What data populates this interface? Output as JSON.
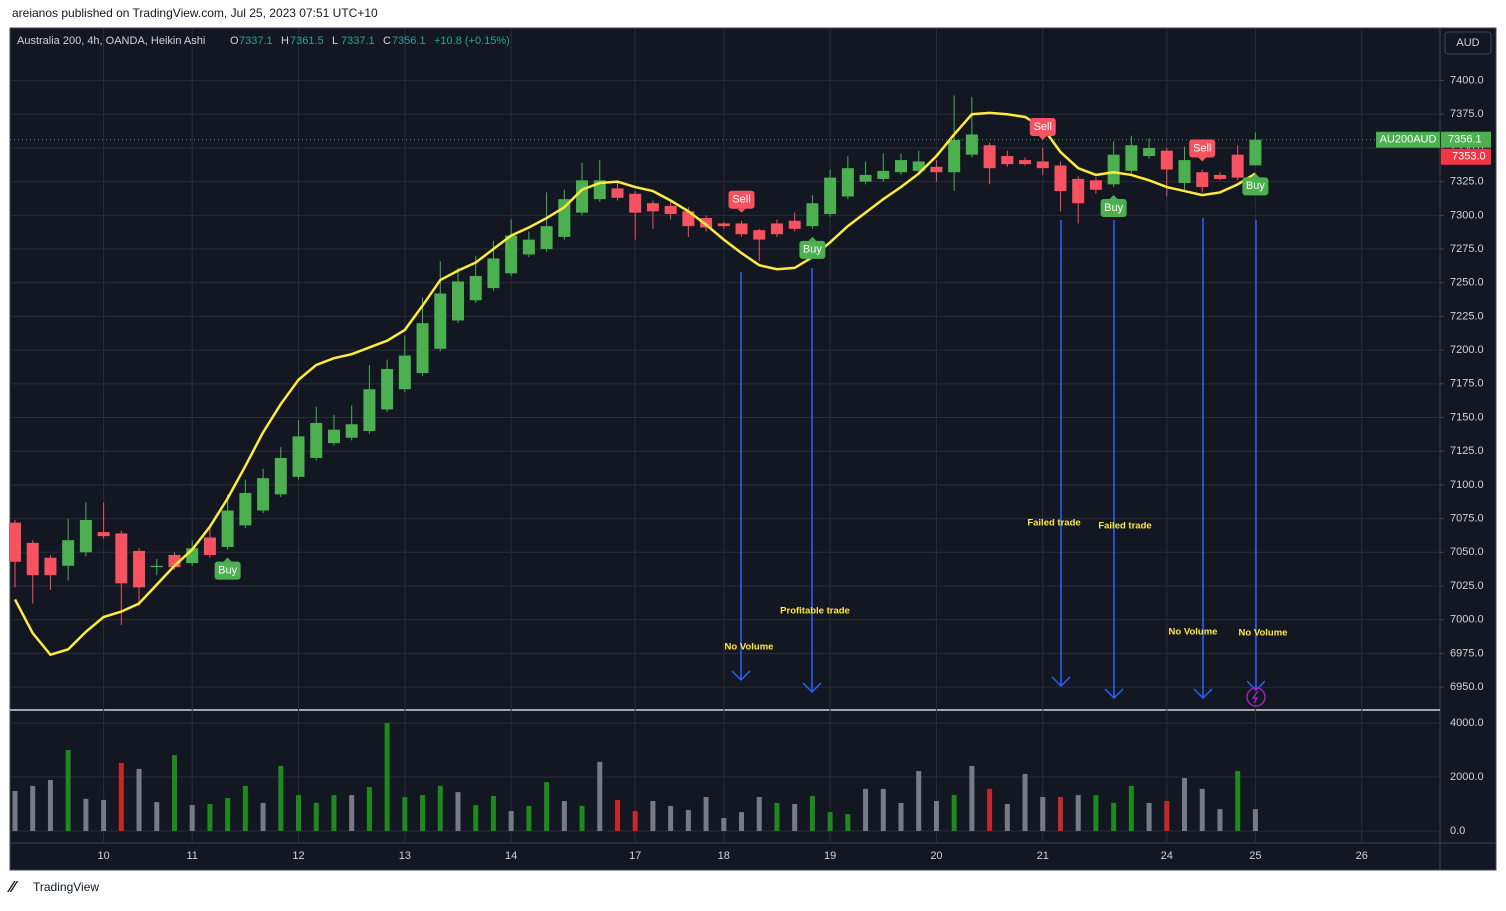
{
  "page": {
    "published": "areianos published on TradingView.com, Jul 25, 2023 07:51 UTC+10",
    "footer": "TradingView"
  },
  "chart_data": {
    "type": "candlestick",
    "title": "Australia 200, 4h, OANDA, Heikin Ashi",
    "ohlc_legend": [
      {
        "key": "O",
        "value": 7337.1
      },
      {
        "key": "H",
        "value": 7361.5
      },
      {
        "key": "L",
        "value": 7337.1
      },
      {
        "key": "C",
        "value": 7356.1
      }
    ],
    "change": "+10.8 (+0.15%)",
    "currency": "AUD",
    "last_price": {
      "symbol": "AU200AUD",
      "value": 7356.1,
      "alt": {
        "value": 7353,
        "label": "7353.0"
      }
    },
    "up_color": "#4caf50",
    "down_color": "#f7525f",
    "categories": [
      null,
      null,
      null,
      null,
      null,
      "10",
      null,
      null,
      null,
      null,
      "11",
      null,
      null,
      null,
      null,
      null,
      "12",
      null,
      null,
      null,
      null,
      null,
      "13",
      null,
      null,
      null,
      null,
      null,
      "14",
      null,
      null,
      null,
      null,
      null,
      null,
      "17",
      null,
      null,
      null,
      null,
      "18",
      null,
      null,
      null,
      null,
      null,
      "19",
      null,
      null,
      null,
      null,
      null,
      "20",
      null,
      null,
      null,
      null,
      null,
      "21",
      null,
      null,
      null,
      null,
      null,
      null,
      "24",
      null,
      null,
      null,
      null,
      "25",
      null,
      null,
      null,
      null,
      null,
      "26"
    ],
    "open": [
      7072,
      7057,
      7046,
      7040,
      7050,
      7065,
      7064,
      7051,
      7039,
      7048,
      7042,
      7061,
      7054,
      7070,
      7081,
      7093,
      7106,
      7120,
      7131,
      7135,
      7140,
      7156,
      7171,
      7183,
      7201,
      7222,
      7237,
      7246,
      7257,
      7271,
      7275,
      7284,
      7302,
      7312,
      7320,
      7316,
      7309,
      7307,
      7303,
      7298,
      7294,
      7294,
      7289,
      7294,
      7296,
      7292,
      7301,
      7314,
      7325,
      7327,
      7332,
      7333,
      7336,
      7332,
      7345,
      7352,
      7344,
      7341,
      7340,
      7337,
      7327,
      7326,
      7323,
      7333,
      7344,
      7348,
      7324,
      7332,
      7330,
      7345,
      7337.1,
      null,
      null,
      null,
      null,
      null,
      null
    ],
    "high": [
      7074,
      7059,
      7048,
      7075,
      7087,
      7087,
      7066,
      7053,
      7045,
      7050,
      7059,
      7069,
      7093,
      7104,
      7112,
      7128,
      7148,
      7158,
      7152,
      7159,
      7189,
      7193,
      7211,
      7239,
      7266,
      7261,
      7270,
      7281,
      7297,
      7288,
      7317,
      7319,
      7339,
      7341,
      7324,
      7318,
      7311,
      7310,
      7306,
      7300,
      7295,
      7296,
      7290,
      7297,
      7302,
      7315,
      7334,
      7344,
      7340,
      7346,
      7346,
      7348,
      7341,
      7389,
      7388,
      7354,
      7348,
      7343,
      7350,
      7340,
      7329,
      7328,
      7355,
      7359,
      7357,
      7350,
      7351,
      7334,
      7332,
      7352,
      7361.5,
      null,
      null,
      null,
      null,
      null,
      null
    ],
    "low": [
      7024,
      7012,
      7022,
      7029,
      7047,
      7060,
      6996,
      7010,
      7033,
      7037,
      7040,
      7046,
      7052,
      7068,
      7079,
      7091,
      7104,
      7118,
      7129,
      7133,
      7138,
      7154,
      7169,
      7181,
      7199,
      7220,
      7235,
      7244,
      7255,
      7269,
      7273,
      7282,
      7300,
      7310,
      7311,
      7282,
      7290,
      7297,
      7284,
      7288,
      7290,
      7284,
      7266,
      7284,
      7288,
      7290,
      7299,
      7312,
      7323,
      7325,
      7330,
      7331,
      7325,
      7318,
      7343,
      7323,
      7336,
      7337,
      7330,
      7303,
      7294,
      7316,
      7321,
      7331,
      7342,
      7314,
      7319,
      7317,
      7326,
      7326,
      7337.1,
      null,
      null,
      null,
      null,
      null,
      null
    ],
    "close": [
      7043,
      7033,
      7033,
      7059,
      7074,
      7062,
      7027,
      7024,
      7040,
      7039,
      7053,
      7048,
      7081,
      7094,
      7105,
      7120,
      7136,
      7146,
      7141,
      7145,
      7171,
      7186,
      7196,
      7220,
      7242,
      7251,
      7255,
      7268,
      7285,
      7282,
      7292,
      7312,
      7326,
      7326,
      7313,
      7302,
      7303,
      7301,
      7292,
      7291,
      7292,
      7286,
      7282,
      7286,
      7290,
      7309,
      7328,
      7335,
      7330,
      7333,
      7341,
      7340,
      7332,
      7356,
      7360,
      7335,
      7338,
      7338,
      7335,
      7318,
      7309,
      7319,
      7345,
      7352,
      7350,
      7334,
      7341,
      7321,
      7327,
      7328,
      7356.1,
      null,
      null,
      null,
      null,
      null,
      null
    ],
    "ylim": [
      6933,
      7439
    ],
    "yticks": [
      {
        "value": 6950,
        "label": "6950.0"
      },
      {
        "value": 6975,
        "label": "6975.0"
      },
      {
        "value": 7000,
        "label": "7000.0"
      },
      {
        "value": 7025,
        "label": "7025.0"
      },
      {
        "value": 7050,
        "label": "7050.0"
      },
      {
        "value": 7075,
        "label": "7075.0"
      },
      {
        "value": 7100,
        "label": "7100.0"
      },
      {
        "value": 7125,
        "label": "7125.0"
      },
      {
        "value": 7150,
        "label": "7150.0"
      },
      {
        "value": 7175,
        "label": "7175.0"
      },
      {
        "value": 7200,
        "label": "7200.0"
      },
      {
        "value": 7225,
        "label": "7225.0"
      },
      {
        "value": 7250,
        "label": "7250.0"
      },
      {
        "value": 7275,
        "label": "7275.0"
      },
      {
        "value": 7300,
        "label": "7300.0"
      },
      {
        "value": 7325,
        "label": "7325.0"
      },
      {
        "value": 7350,
        "label": "7350.0"
      },
      {
        "value": 7375,
        "label": "7375.0"
      },
      {
        "value": 7400,
        "label": "7400.0"
      }
    ],
    "grid": true,
    "ma": {
      "color": "#ffeb3b",
      "values": [
        7015,
        6990,
        6974,
        6978,
        6991,
        7002,
        7006,
        7012,
        7026,
        7040,
        7052,
        7069,
        7090,
        7114,
        7139,
        7160,
        7178,
        7189,
        7194,
        7197,
        7202,
        7207,
        7215,
        7233,
        7252,
        7259,
        7265,
        7275,
        7285,
        7291,
        7298,
        7306,
        7319,
        7324,
        7325,
        7321,
        7318,
        7311,
        7303,
        7293,
        7282,
        7272,
        7263,
        7260,
        7261,
        7269,
        7280,
        7292,
        7302,
        7312,
        7321,
        7331,
        7344,
        7360,
        7375,
        7376,
        7375,
        7373,
        7365,
        7347,
        7335,
        7330,
        7332,
        7330,
        7326,
        7321,
        7318,
        7315,
        7317,
        7323,
        7331,
        null,
        null,
        null,
        null,
        null,
        null
      ]
    },
    "volume": {
      "values": [
        1480,
        1670,
        1890,
        3000,
        1190,
        1150,
        2520,
        2300,
        1070,
        2810,
        960,
        1000,
        1220,
        1670,
        1040,
        2410,
        1330,
        1040,
        1330,
        1330,
        1630,
        4000,
        1260,
        1330,
        1670,
        1440,
        960,
        1300,
        740,
        930,
        1810,
        1110,
        930,
        2560,
        1150,
        740,
        1110,
        930,
        780,
        1260,
        480,
        700,
        1260,
        1040,
        1000,
        1300,
        700,
        630,
        1560,
        1560,
        1040,
        2220,
        1110,
        1330,
        2410,
        1560,
        1000,
        2110,
        1260,
        1260,
        1330,
        1330,
        1040,
        1670,
        1040,
        1110,
        1960,
        1560,
        810,
        2220,
        810,
        null,
        null,
        null,
        null,
        null,
        null
      ],
      "colors": [
        "#787b86",
        "#787b86",
        "#787b86",
        "#1e8a1e",
        "#787b86",
        "#787b86",
        "#c62828",
        "#787b86",
        "#787b86",
        "#1e8a1e",
        "#787b86",
        "#1e8a1e",
        "#1e8a1e",
        "#1e8a1e",
        "#787b86",
        "#1e8a1e",
        "#1e8a1e",
        "#1e8a1e",
        "#1e8a1e",
        "#787b86",
        "#1e8a1e",
        "#1e8a1e",
        "#1e8a1e",
        "#1e8a1e",
        "#1e8a1e",
        "#787b86",
        "#1e8a1e",
        "#1e8a1e",
        "#787b86",
        "#1e8a1e",
        "#1e8a1e",
        "#787b86",
        "#1e8a1e",
        "#787b86",
        "#c62828",
        "#c62828",
        "#787b86",
        "#787b86",
        "#787b86",
        "#787b86",
        "#787b86",
        "#787b86",
        "#787b86",
        "#1e8a1e",
        "#787b86",
        "#1e8a1e",
        "#1e8a1e",
        "#1e8a1e",
        "#787b86",
        "#787b86",
        "#787b86",
        "#787b86",
        "#787b86",
        "#1e8a1e",
        "#787b86",
        "#c62828",
        "#787b86",
        "#787b86",
        "#787b86",
        "#c62828",
        "#787b86",
        "#1e8a1e",
        "#1e8a1e",
        "#1e8a1e",
        "#787b86",
        "#c62828",
        "#787b86",
        "#787b86",
        "#787b86",
        "#1e8a1e",
        "#787b86",
        null,
        null,
        null,
        null,
        null,
        null
      ],
      "ylim": [
        -444,
        4407
      ],
      "yticks": [
        {
          "value": 0,
          "label": "0.0"
        },
        {
          "value": 2000,
          "label": "2000.0"
        },
        {
          "value": 4000,
          "label": "4000.0"
        }
      ]
    },
    "signals": [
      {
        "candle": 12,
        "label": "Buy"
      },
      {
        "candle": 41,
        "label": "Sell"
      },
      {
        "candle": 45,
        "label": "Buy"
      },
      {
        "candle": 58,
        "label": "Sell"
      },
      {
        "candle": 62,
        "label": "Buy"
      },
      {
        "candle": 67,
        "label": "Sell"
      },
      {
        "candle": 70,
        "label": "Buy"
      }
    ],
    "annotations": [
      "No Volume",
      "Profitable trade",
      "Failed trade",
      "Failed trade",
      "No Volume",
      "No Volume"
    ]
  }
}
